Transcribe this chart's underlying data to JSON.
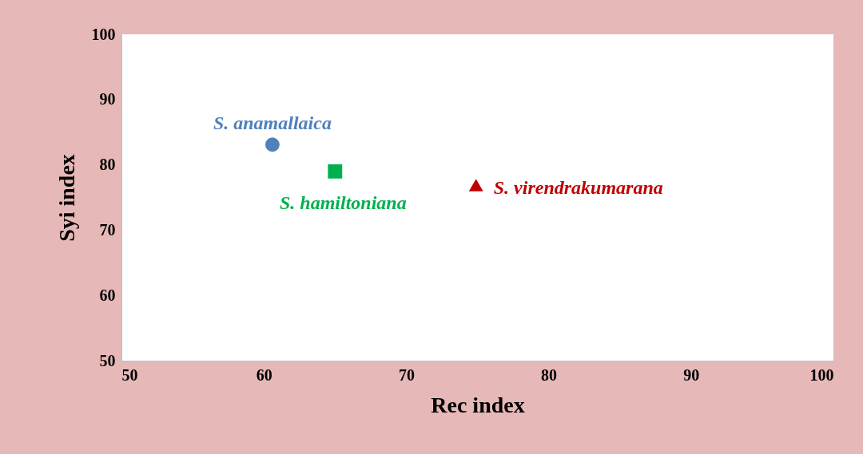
{
  "chart_data": {
    "type": "scatter",
    "xlabel": "Rec index",
    "ylabel": "Syi index",
    "xlim": [
      50,
      100
    ],
    "xticks": [
      50,
      60,
      70,
      80,
      90,
      100
    ],
    "ylim": [
      50,
      100
    ],
    "yticks": [
      50,
      60,
      70,
      80,
      90,
      100
    ],
    "grid": false,
    "series": [
      {
        "name": "S. anamallaica",
        "color": "#4f81bd",
        "marker": "circle",
        "x": [
          60.6
        ],
        "values": [
          83.1
        ]
      },
      {
        "name": "S. hamiltoniana",
        "color": "#00b050",
        "marker": "square",
        "x": [
          65.0
        ],
        "values": [
          79.0
        ]
      },
      {
        "name": "S. virendrakumarana",
        "color": "#c00000",
        "marker": "triangle",
        "x": [
          74.9
        ],
        "values": [
          76.9
        ]
      }
    ]
  }
}
